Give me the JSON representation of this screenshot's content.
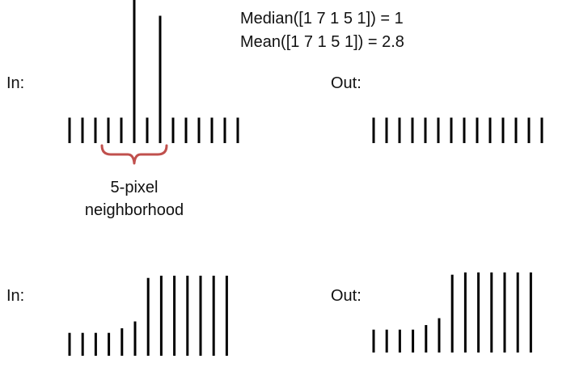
{
  "formulas": {
    "median": "Median([1 7 1 5 1]) = 1",
    "mean": "Mean([1 7 1 5 1]) = 2.8"
  },
  "labels": {
    "in_top": "In:",
    "out_top": "Out:",
    "in_bottom": "In:",
    "out_bottom": "Out:"
  },
  "annotation": {
    "line1": "5-pixel",
    "line2": "neighborhood"
  },
  "colors": {
    "bar": "#000000",
    "brace": "#c0504d",
    "text": "#111111"
  },
  "signals": {
    "top_input": [
      1,
      1,
      1,
      1,
      1,
      7,
      1,
      5,
      1,
      1,
      1,
      1,
      1,
      1
    ],
    "top_output": [
      1,
      1,
      1,
      1,
      1,
      1,
      1,
      1,
      1,
      1,
      1,
      1,
      1,
      1
    ],
    "bottom_input": [
      1,
      1,
      1,
      1,
      1.2,
      1.5,
      3.4,
      3.5,
      3.5,
      3.5,
      3.5,
      3.5,
      3.5
    ],
    "bottom_output": [
      1,
      1,
      1,
      1,
      1.2,
      1.5,
      3.4,
      3.5,
      3.5,
      3.5,
      3.5,
      3.5,
      3.5
    ]
  }
}
